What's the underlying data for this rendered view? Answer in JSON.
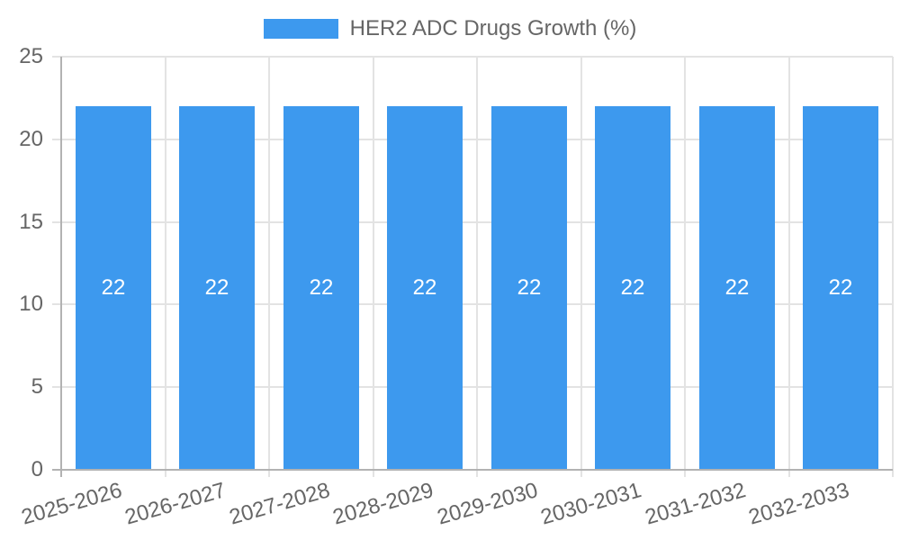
{
  "chart_data": {
    "type": "bar",
    "title": "",
    "legend": "HER2 ADC Drugs Growth (%)",
    "legend_position": "top",
    "categories": [
      "2025-2026",
      "2026-2027",
      "2027-2028",
      "2028-2029",
      "2029-2030",
      "2030-2031",
      "2031-2032",
      "2032-2033"
    ],
    "values": [
      22,
      22,
      22,
      22,
      22,
      22,
      22,
      22
    ],
    "value_labels_inside_bars": true,
    "xlabel": "",
    "ylabel": "",
    "ylim": [
      0,
      25
    ],
    "yticks": [
      0,
      5,
      10,
      15,
      20,
      25
    ],
    "grid": true,
    "colors": {
      "bar": "#3D99EE",
      "grid": "#E3E3E3",
      "axis": "#B2B2B2",
      "tick_text": "#666666",
      "legend_text": "#666666",
      "value_label_text": "#FFFFFF",
      "background": "#FFFFFF"
    }
  }
}
